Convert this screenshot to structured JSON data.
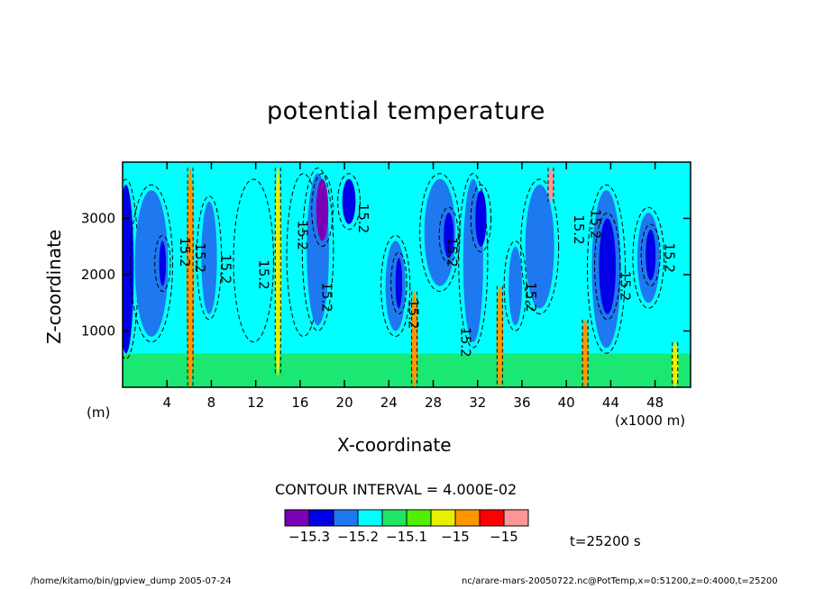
{
  "chart_data": {
    "type": "heatmap",
    "title": "potential temperature",
    "xlabel": "X-coordinate",
    "ylabel": "Z-coordinate",
    "x_unit": "(x1000 m)",
    "y_unit": "(m)",
    "xlim": [
      0,
      51.2
    ],
    "ylim": [
      0,
      4000
    ],
    "x_ticks": [
      4,
      8,
      12,
      16,
      20,
      24,
      28,
      32,
      36,
      40,
      44,
      48
    ],
    "y_ticks": [
      1000,
      2000,
      3000
    ],
    "contour_interval_label": "CONTOUR INTERVAL = 4.000E-02",
    "contour_label_text": "15.2",
    "colorbar": {
      "colors": [
        "#7a00b5",
        "#0000e6",
        "#1e78f0",
        "#00ffff",
        "#1ee664",
        "#50f000",
        "#e6f000",
        "#ff9600",
        "#ff0000",
        "#ff9696"
      ],
      "tick_labels": [
        "−15.3",
        "−15.2",
        "−15.1",
        "−15",
        "−15"
      ]
    },
    "columns": [
      {
        "x": 0.3,
        "level": 1,
        "z0": 600,
        "z1": 3600,
        "w": 0.7
      },
      {
        "x": 2.6,
        "level": 2,
        "z0": 900,
        "z1": 3500,
        "w": 1.5
      },
      {
        "x": 3.6,
        "level": 1,
        "z0": 1800,
        "z1": 2600,
        "w": 0.3
      },
      {
        "x": 6.1,
        "level": 7,
        "z0": 0,
        "z1": 3900,
        "w": 0.35
      },
      {
        "x": 7.8,
        "level": 2,
        "z0": 1300,
        "z1": 3300,
        "w": 0.7
      },
      {
        "x": 11.8,
        "level": 3,
        "z0": 900,
        "z1": 3600,
        "w": 1.4
      },
      {
        "x": 14.0,
        "level": 6,
        "z0": 200,
        "z1": 3900,
        "w": 0.3
      },
      {
        "x": 16.3,
        "level": 3,
        "z0": 1000,
        "z1": 3700,
        "w": 1.1
      },
      {
        "x": 17.6,
        "level": 2,
        "z0": 1100,
        "z1": 3800,
        "w": 1.0
      },
      {
        "x": 18.0,
        "level": 0,
        "z0": 2600,
        "z1": 3700,
        "w": 0.55
      },
      {
        "x": 20.4,
        "level": 1,
        "z0": 2900,
        "z1": 3700,
        "w": 0.6
      },
      {
        "x": 24.6,
        "level": 2,
        "z0": 1000,
        "z1": 2600,
        "w": 0.9
      },
      {
        "x": 24.9,
        "level": 1,
        "z0": 1400,
        "z1": 2300,
        "w": 0.3
      },
      {
        "x": 26.3,
        "level": 7,
        "z0": 0,
        "z1": 1700,
        "w": 0.3
      },
      {
        "x": 28.6,
        "level": 2,
        "z0": 1800,
        "z1": 3700,
        "w": 1.4
      },
      {
        "x": 29.4,
        "level": 1,
        "z0": 2300,
        "z1": 3100,
        "w": 0.45
      },
      {
        "x": 31.6,
        "level": 2,
        "z0": 800,
        "z1": 3700,
        "w": 0.9
      },
      {
        "x": 32.3,
        "level": 1,
        "z0": 2500,
        "z1": 3500,
        "w": 0.5
      },
      {
        "x": 34.0,
        "level": 7,
        "z0": 0,
        "z1": 1800,
        "w": 0.3
      },
      {
        "x": 35.4,
        "level": 2,
        "z0": 1100,
        "z1": 2500,
        "w": 0.6
      },
      {
        "x": 37.6,
        "level": 2,
        "z0": 1400,
        "z1": 3600,
        "w": 1.3
      },
      {
        "x": 38.6,
        "level": 9,
        "z0": 3300,
        "z1": 3900,
        "w": 0.25
      },
      {
        "x": 41.7,
        "level": 7,
        "z0": 0,
        "z1": 1200,
        "w": 0.3
      },
      {
        "x": 43.6,
        "level": 2,
        "z0": 700,
        "z1": 3500,
        "w": 1.3
      },
      {
        "x": 43.7,
        "level": 1,
        "z0": 1300,
        "z1": 3000,
        "w": 0.75
      },
      {
        "x": 47.4,
        "level": 2,
        "z0": 1500,
        "z1": 3100,
        "w": 1.0
      },
      {
        "x": 47.6,
        "level": 1,
        "z0": 1900,
        "z1": 2800,
        "w": 0.45
      },
      {
        "x": 49.8,
        "level": 6,
        "z0": 0,
        "z1": 800,
        "w": 0.3
      }
    ],
    "labels": [
      {
        "x": 5.2,
        "z": 2400,
        "text": "15.2"
      },
      {
        "x": 6.6,
        "z": 2300,
        "text": "15.2"
      },
      {
        "x": 8.9,
        "z": 2100,
        "text": "15.2"
      },
      {
        "x": 12.3,
        "z": 2000,
        "text": "15.2"
      },
      {
        "x": 15.8,
        "z": 2700,
        "text": "15.2"
      },
      {
        "x": 18.0,
        "z": 1600,
        "text": "15.2"
      },
      {
        "x": 21.3,
        "z": 3000,
        "text": "15.2"
      },
      {
        "x": 25.8,
        "z": 1300,
        "text": "15.2"
      },
      {
        "x": 29.3,
        "z": 2400,
        "text": "15.2"
      },
      {
        "x": 30.5,
        "z": 800,
        "text": "15.2"
      },
      {
        "x": 36.4,
        "z": 1600,
        "text": "15.2"
      },
      {
        "x": 40.7,
        "z": 2800,
        "text": "15.2"
      },
      {
        "x": 42.2,
        "z": 2900,
        "text": "15.2"
      },
      {
        "x": 44.9,
        "z": 1800,
        "text": "15.2"
      },
      {
        "x": 48.9,
        "z": 2300,
        "text": "15.2"
      }
    ]
  },
  "time_label": "t=25200 s",
  "footer_left": "/home/kitamo/bin/gpview_dump  2005-07-24",
  "footer_right": "nc/arare-mars-20050722.nc@PotTemp,x=0:51200,z=0:4000,t=25200"
}
